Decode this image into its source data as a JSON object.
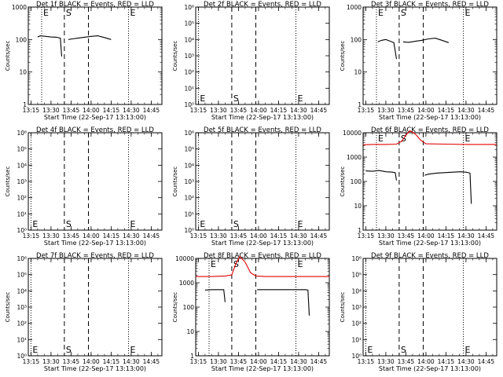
{
  "figure": {
    "xlabel": "Start Time (22-Sep-17 13:13:00)",
    "ylabel": "Counts/sec",
    "x_tick_labels": [
      "13:15",
      "13:30",
      "13:45",
      "14:00",
      "14:15",
      "14:30",
      "14:45"
    ],
    "event_colors": {
      "events": "#000000",
      "lld": "#e00000"
    }
  },
  "chart_data": [
    {
      "type": "line",
      "title": "Det 1f BLACK = Events, RED = LLD",
      "ylabel": "Counts/sec",
      "xlabel": "Start Time (22-Sep-17 13:13:00)",
      "xlim": [
        "13:13",
        "14:53"
      ],
      "ylog": true,
      "ylim": [
        1,
        1000
      ],
      "ytick_labels": [
        "1",
        "10",
        "100",
        "1000"
      ],
      "x_ticks": [
        "13:15",
        "13:30",
        "13:45",
        "14:00",
        "14:15",
        "14:30",
        "14:45"
      ],
      "markers": [
        {
          "label": "E",
          "time": "13:23",
          "style": "dotted"
        },
        {
          "label": "S",
          "time": "13:40",
          "style": "dashed"
        },
        {
          "label": "",
          "time": "13:58",
          "style": "dashed"
        },
        {
          "label": "E",
          "time": "14:28",
          "style": "dotted"
        }
      ],
      "series": [
        {
          "color": "#000000",
          "segments": [
            {
              "x": [
                "13:20",
                "13:22",
                "13:26",
                "13:30",
                "13:34",
                "13:37",
                "13:38"
              ],
              "y": [
                120,
                130,
                125,
                120,
                118,
                110,
                30
              ]
            },
            {
              "x": [
                "13:43",
                "13:46",
                "13:50",
                "13:55",
                "14:00",
                "14:05",
                "14:10",
                "14:15"
              ],
              "y": [
                100,
                105,
                110,
                118,
                125,
                130,
                115,
                100
              ]
            }
          ]
        }
      ]
    },
    {
      "type": "line",
      "title": "Det 2f BLACK = Events, RED = LLD",
      "ylabel": "Counts/sec",
      "xlabel": "Start Time (22-Sep-17 13:13:00)",
      "xlim": [
        "13:13",
        "14:53"
      ],
      "ylog": true,
      "ylim": [
        1,
        1000000
      ],
      "ytick_labels": [
        "10⁰",
        "10¹",
        "10²",
        "10³",
        "10⁴",
        "10⁵",
        "10⁶"
      ],
      "x_ticks": [
        "13:15",
        "13:30",
        "13:45",
        "14:00",
        "14:15",
        "14:30",
        "14:45"
      ],
      "markers": [
        {
          "label": "E",
          "time": "13:15",
          "style": "dotted"
        },
        {
          "label": "S",
          "time": "13:40",
          "style": "dashed"
        },
        {
          "label": "",
          "time": "13:58",
          "style": "dashed"
        },
        {
          "label": "E",
          "time": "14:28",
          "style": "dotted"
        }
      ],
      "series": []
    },
    {
      "type": "line",
      "title": "Det 3f BLACK = Events, RED = LLD",
      "ylabel": "Counts/sec",
      "xlabel": "Start Time (22-Sep-17 13:13:00)",
      "xlim": [
        "13:13",
        "14:53"
      ],
      "ylog": true,
      "ylim": [
        1,
        1000
      ],
      "ytick_labels": [
        "1",
        "10",
        "100",
        "1000"
      ],
      "x_ticks": [
        "13:15",
        "13:30",
        "13:45",
        "14:00",
        "14:15",
        "14:30",
        "14:45"
      ],
      "markers": [
        {
          "label": "E",
          "time": "13:23",
          "style": "dotted"
        },
        {
          "label": "S",
          "time": "13:40",
          "style": "dashed"
        },
        {
          "label": "",
          "time": "13:58",
          "style": "dashed"
        },
        {
          "label": "E",
          "time": "14:28",
          "style": "dotted"
        }
      ],
      "series": [
        {
          "color": "#000000",
          "segments": [
            {
              "x": [
                "13:24",
                "13:27",
                "13:30",
                "13:33",
                "13:36",
                "13:38"
              ],
              "y": [
                85,
                95,
                100,
                90,
                80,
                25
              ]
            },
            {
              "x": [
                "13:43",
                "13:47",
                "13:52",
                "13:57",
                "14:02",
                "14:07",
                "14:12",
                "14:17"
              ],
              "y": [
                85,
                82,
                88,
                95,
                105,
                110,
                95,
                80
              ]
            }
          ]
        }
      ]
    },
    {
      "type": "line",
      "title": "Det 4f BLACK = Events, RED = LLD",
      "ylabel": "Counts/sec",
      "xlabel": "Start Time (22-Sep-17 13:13:00)",
      "xlim": [
        "13:13",
        "14:53"
      ],
      "ylog": true,
      "ylim": [
        1,
        1000000
      ],
      "ytick_labels": [
        "10⁰",
        "10¹",
        "10²",
        "10³",
        "10⁴",
        "10⁵",
        "10⁶"
      ],
      "x_ticks": [
        "13:15",
        "13:30",
        "13:45",
        "14:00",
        "14:15",
        "14:30",
        "14:45"
      ],
      "markers": [
        {
          "label": "E",
          "time": "13:15",
          "style": "dotted"
        },
        {
          "label": "S",
          "time": "13:40",
          "style": "dashed"
        },
        {
          "label": "",
          "time": "13:58",
          "style": "dashed"
        },
        {
          "label": "E",
          "time": "14:28",
          "style": "dotted"
        }
      ],
      "series": []
    },
    {
      "type": "line",
      "title": "Det 5f BLACK = Events, RED = LLD",
      "ylabel": "Counts/sec",
      "xlabel": "Start Time (22-Sep-17 13:13:00)",
      "xlim": [
        "13:13",
        "14:53"
      ],
      "ylog": true,
      "ylim": [
        1,
        1000000
      ],
      "ytick_labels": [
        "10⁰",
        "10¹",
        "10²",
        "10³",
        "10⁴",
        "10⁵",
        "10⁶"
      ],
      "x_ticks": [
        "13:15",
        "13:30",
        "13:45",
        "14:00",
        "14:15",
        "14:30",
        "14:45"
      ],
      "markers": [
        {
          "label": "E",
          "time": "13:15",
          "style": "dotted"
        },
        {
          "label": "S",
          "time": "13:40",
          "style": "dashed"
        },
        {
          "label": "",
          "time": "13:58",
          "style": "dashed"
        },
        {
          "label": "E",
          "time": "14:28",
          "style": "dotted"
        }
      ],
      "series": []
    },
    {
      "type": "line",
      "title": "Det 6f BLACK = Events, RED = LLD",
      "ylabel": "Counts/sec",
      "xlabel": "Start Time (22-Sep-17 13:13:00)",
      "xlim": [
        "13:13",
        "14:53"
      ],
      "ylog": true,
      "ylim": [
        1,
        10000
      ],
      "ytick_labels": [
        "1",
        "10",
        "100",
        "1000",
        "10000"
      ],
      "x_ticks": [
        "13:15",
        "13:30",
        "13:45",
        "14:00",
        "14:15",
        "14:30",
        "14:45"
      ],
      "markers": [
        {
          "label": "E",
          "time": "13:23",
          "style": "dotted"
        },
        {
          "label": "S",
          "time": "13:40",
          "style": "dashed"
        },
        {
          "label": "",
          "time": "13:58",
          "style": "dashed"
        },
        {
          "label": "E",
          "time": "14:28",
          "style": "dotted"
        }
      ],
      "series": [
        {
          "color": "#000000",
          "segments": [
            {
              "x": [
                "13:15",
                "13:20",
                "13:25",
                "13:30",
                "13:35",
                "13:37",
                "13:38"
              ],
              "y": [
                270,
                260,
                280,
                250,
                240,
                230,
                110
              ]
            },
            {
              "x": [
                "13:59",
                "14:02",
                "14:08",
                "14:14",
                "14:20",
                "14:26",
                "14:30",
                "14:33",
                "14:34"
              ],
              "y": [
                180,
                200,
                220,
                230,
                240,
                250,
                240,
                220,
                12
              ]
            }
          ]
        },
        {
          "color": "#e00000",
          "segments": [
            {
              "x": [
                "13:13",
                "13:20",
                "13:30",
                "13:38",
                "13:42",
                "13:45",
                "13:48",
                "13:52",
                "13:56",
                "14:00",
                "14:15",
                "14:30",
                "14:45",
                "14:53"
              ],
              "y": [
                3200,
                3300,
                3300,
                3400,
                4500,
                8000,
                12000,
                9000,
                5000,
                3500,
                3400,
                3300,
                3300,
                3300
              ]
            }
          ]
        }
      ]
    },
    {
      "type": "line",
      "title": "Det 7f BLACK = Events, RED = LLD",
      "ylabel": "Counts/sec",
      "xlabel": "Start Time (22-Sep-17 13:13:00)",
      "xlim": [
        "13:13",
        "14:53"
      ],
      "ylog": true,
      "ylim": [
        1,
        1000000
      ],
      "ytick_labels": [
        "10⁰",
        "10¹",
        "10²",
        "10³",
        "10⁴",
        "10⁵",
        "10⁶"
      ],
      "x_ticks": [
        "13:15",
        "13:30",
        "13:45",
        "14:00",
        "14:15",
        "14:30",
        "14:45"
      ],
      "markers": [
        {
          "label": "E",
          "time": "13:15",
          "style": "dotted"
        },
        {
          "label": "S",
          "time": "13:40",
          "style": "dashed"
        },
        {
          "label": "",
          "time": "13:58",
          "style": "dashed"
        },
        {
          "label": "E",
          "time": "14:28",
          "style": "dotted"
        }
      ],
      "series": []
    },
    {
      "type": "line",
      "title": "Det 8f BLACK = Events, RED = LLD",
      "ylabel": "Counts/sec",
      "xlabel": "Start Time (22-Sep-17 13:13:00)",
      "xlim": [
        "13:13",
        "14:53"
      ],
      "ylog": true,
      "ylim": [
        1,
        10000
      ],
      "ytick_labels": [
        "1",
        "10",
        "100",
        "1000",
        "10000"
      ],
      "x_ticks": [
        "13:15",
        "13:30",
        "13:45",
        "14:00",
        "14:15",
        "14:30",
        "14:45"
      ],
      "markers": [
        {
          "label": "E",
          "time": "13:23",
          "style": "dotted"
        },
        {
          "label": "S",
          "time": "13:40",
          "style": "dashed"
        },
        {
          "label": "",
          "time": "13:58",
          "style": "dashed"
        },
        {
          "label": "E",
          "time": "14:28",
          "style": "dotted"
        }
      ],
      "series": [
        {
          "color": "#000000",
          "segments": [
            {
              "x": [
                "13:20",
                "13:25",
                "13:30",
                "13:34",
                "13:35"
              ],
              "y": [
                500,
                520,
                520,
                520,
                160
              ]
            },
            {
              "x": [
                "13:59",
                "14:05",
                "14:15",
                "14:25",
                "14:35",
                "14:37",
                "14:38"
              ],
              "y": [
                520,
                520,
                520,
                520,
                520,
                500,
                45
              ]
            }
          ]
        },
        {
          "color": "#e00000",
          "segments": [
            {
              "x": [
                "13:13",
                "13:25",
                "13:35",
                "13:40",
                "13:43",
                "13:46",
                "13:50",
                "13:54",
                "13:58",
                "14:05",
                "14:20",
                "14:35",
                "14:53"
              ],
              "y": [
                1800,
                1800,
                1900,
                2100,
                6000,
                12000,
                7000,
                2600,
                1900,
                1800,
                1800,
                1800,
                1800
              ]
            }
          ]
        }
      ]
    },
    {
      "type": "line",
      "title": "Det 9f BLACK = Events, RED = LLD",
      "ylabel": "Counts/sec",
      "xlabel": "Start Time (22-Sep-17 13:13:00)",
      "xlim": [
        "13:13",
        "14:53"
      ],
      "ylog": true,
      "ylim": [
        1,
        1000000
      ],
      "ytick_labels": [
        "10⁰",
        "10¹",
        "10²",
        "10³",
        "10⁴",
        "10⁵",
        "10⁶"
      ],
      "x_ticks": [
        "13:15",
        "13:30",
        "13:45",
        "14:00",
        "14:15",
        "14:30",
        "14:45"
      ],
      "markers": [
        {
          "label": "E",
          "time": "13:15",
          "style": "dotted"
        },
        {
          "label": "S",
          "time": "13:40",
          "style": "dashed"
        },
        {
          "label": "",
          "time": "13:58",
          "style": "dashed"
        },
        {
          "label": "E",
          "time": "14:28",
          "style": "dotted"
        }
      ],
      "series": []
    }
  ]
}
